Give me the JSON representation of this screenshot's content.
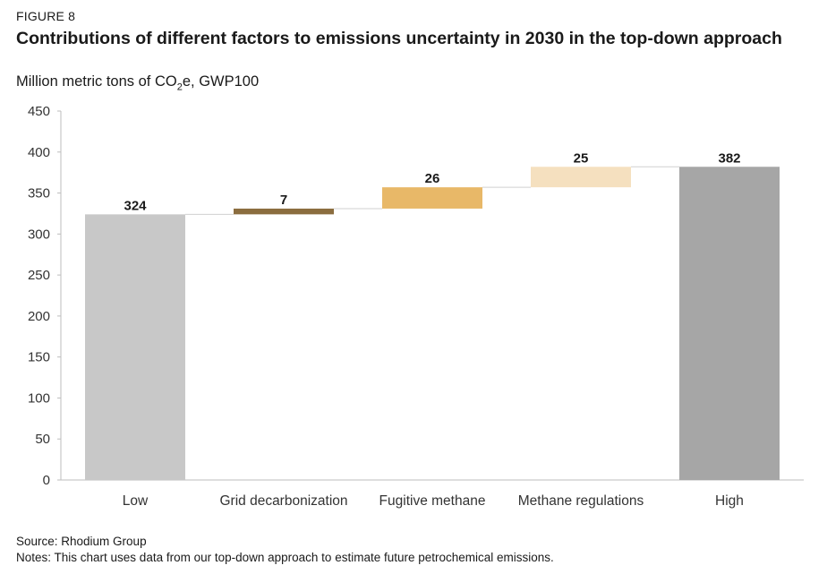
{
  "figure_label": "FIGURE 8",
  "title": "Contributions of different factors to emissions uncertainty in 2030 in the top-down approach",
  "subtitle": {
    "prefix": "Million metric tons of CO",
    "subscript": "2",
    "suffix": "e, GWP100"
  },
  "source": "Source: Rhodium Group",
  "notes": "Notes: This chart uses data from our top-down approach to estimate future petrochemical emissions.",
  "chart_data": {
    "type": "bar",
    "subtype": "waterfall",
    "categories": [
      "Low",
      "Grid decarbonization",
      "Fugitive methane",
      "Methane regulations",
      "High"
    ],
    "values": [
      324,
      7,
      26,
      25,
      382
    ],
    "bar_kind": [
      "total",
      "delta",
      "delta",
      "delta",
      "total"
    ],
    "data_labels": [
      "324",
      "7",
      "26",
      "25",
      "382"
    ],
    "colors": [
      "#c8c8c8",
      "#8b6d3f",
      "#e8b868",
      "#f5e0bf",
      "#a6a6a6"
    ],
    "connector_color": "#d0d0d0",
    "ylim": [
      0,
      450
    ],
    "yticks": [
      0,
      50,
      100,
      150,
      200,
      250,
      300,
      350,
      400,
      450
    ],
    "grid": false,
    "xlabel": "",
    "ylabel": ""
  }
}
